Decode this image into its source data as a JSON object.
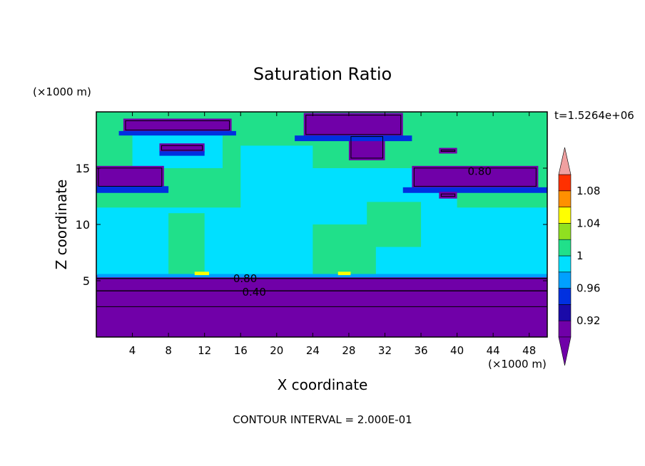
{
  "chart_data": {
    "type": "heatmap",
    "title": "Saturation Ratio",
    "xlabel": "X coordinate",
    "ylabel": "Z coordinate",
    "x_unit": "(×1000 m)",
    "y_unit": "(×1000 m)",
    "time_label": "t=1.5264e+06",
    "footer": "CONTOUR INTERVAL = 2.000E-01",
    "xlim": [
      0,
      50
    ],
    "ylim": [
      0,
      20
    ],
    "x_ticks": [
      4,
      8,
      12,
      16,
      20,
      24,
      28,
      32,
      36,
      40,
      44,
      48
    ],
    "y_ticks": [
      5,
      10,
      15
    ],
    "colorbar": {
      "levels": [
        0.9,
        0.92,
        0.94,
        0.96,
        0.98,
        1.0,
        1.02,
        1.04,
        1.06,
        1.08,
        1.1
      ],
      "labels": [
        "0.92",
        "0.96",
        "1",
        "1.04",
        "1.08"
      ],
      "label_values": [
        0.92,
        0.96,
        1.0,
        1.04,
        1.08
      ],
      "colors": [
        "#7000a8",
        "#1a0aa8",
        "#0030e0",
        "#00a0ff",
        "#00e0ff",
        "#20e08a",
        "#90e020",
        "#ffff00",
        "#ff9000",
        "#ff3000",
        "#e81010"
      ],
      "over_color": "#f0a0a0",
      "under_color": "#7000a8"
    },
    "contour_labels": [
      {
        "text": "0.80",
        "x": 16.5,
        "y": 5.2
      },
      {
        "text": "0.40",
        "x": 17.5,
        "y": 4.0
      },
      {
        "text": "0.80",
        "x": 42.5,
        "y": 14.7
      }
    ],
    "regions": [
      {
        "value": 1.01,
        "x0": 0,
        "x1": 50,
        "y0": 5.5,
        "y1": 20
      },
      {
        "value": 0.99,
        "x0": 0,
        "x1": 50,
        "y0": 5.5,
        "y1": 11.5
      },
      {
        "value": 1.01,
        "x0": 8,
        "x1": 12,
        "y0": 5.5,
        "y1": 11
      },
      {
        "value": 1.01,
        "x0": 24,
        "x1": 31,
        "y0": 5.5,
        "y1": 10
      },
      {
        "value": 0.99,
        "x0": 16,
        "x1": 24,
        "y0": 10,
        "y1": 17
      },
      {
        "value": 0.99,
        "x0": 22,
        "x1": 40,
        "y0": 11,
        "y1": 15
      },
      {
        "value": 0.99,
        "x0": 4,
        "x1": 14,
        "y0": 15,
        "y1": 18
      },
      {
        "value": 1.01,
        "x0": 30,
        "x1": 36,
        "y0": 8,
        "y1": 12
      },
      {
        "value": 0.5,
        "x0": 0,
        "x1": 50,
        "y0": 0,
        "y1": 5.5
      },
      {
        "value": 0.97,
        "x0": 0.1,
        "x1": 50,
        "y0": 5.3,
        "y1": 5.6
      },
      {
        "value": 0.5,
        "x0": 0,
        "x1": 7.5,
        "y0": 13.2,
        "y1": 15.2
      },
      {
        "value": 0.95,
        "x0": 0,
        "x1": 8,
        "y0": 12.8,
        "y1": 13.4
      },
      {
        "value": 0.5,
        "x0": 3,
        "x1": 15,
        "y0": 18.2,
        "y1": 19.4
      },
      {
        "value": 0.95,
        "x0": 2.5,
        "x1": 15.5,
        "y0": 17.9,
        "y1": 18.3
      },
      {
        "value": 0.5,
        "x0": 7,
        "x1": 12,
        "y0": 16.4,
        "y1": 17.2
      },
      {
        "value": 0.95,
        "x0": 7,
        "x1": 12,
        "y0": 16.1,
        "y1": 16.5
      },
      {
        "value": 0.5,
        "x0": 23,
        "x1": 34,
        "y0": 17.8,
        "y1": 19.9
      },
      {
        "value": 0.5,
        "x0": 28,
        "x1": 32,
        "y0": 15.7,
        "y1": 18
      },
      {
        "value": 0.95,
        "x0": 22,
        "x1": 35,
        "y0": 17.4,
        "y1": 17.9
      },
      {
        "value": 0.5,
        "x0": 35,
        "x1": 49,
        "y0": 13.2,
        "y1": 15.2
      },
      {
        "value": 0.95,
        "x0": 34,
        "x1": 50,
        "y0": 12.8,
        "y1": 13.3
      },
      {
        "value": 0.5,
        "x0": 38,
        "x1": 40,
        "y0": 12.3,
        "y1": 12.9
      },
      {
        "value": 0.5,
        "x0": 38,
        "x1": 40,
        "y0": 16.3,
        "y1": 16.8
      },
      {
        "value": 1.05,
        "x0": 10.9,
        "x1": 12.5,
        "y0": 5.5,
        "y1": 5.8
      },
      {
        "value": 1.05,
        "x0": 26.8,
        "x1": 28.2,
        "y0": 5.5,
        "y1": 5.8
      }
    ],
    "contour_levels_drawn": [
      0.4,
      0.8
    ]
  }
}
